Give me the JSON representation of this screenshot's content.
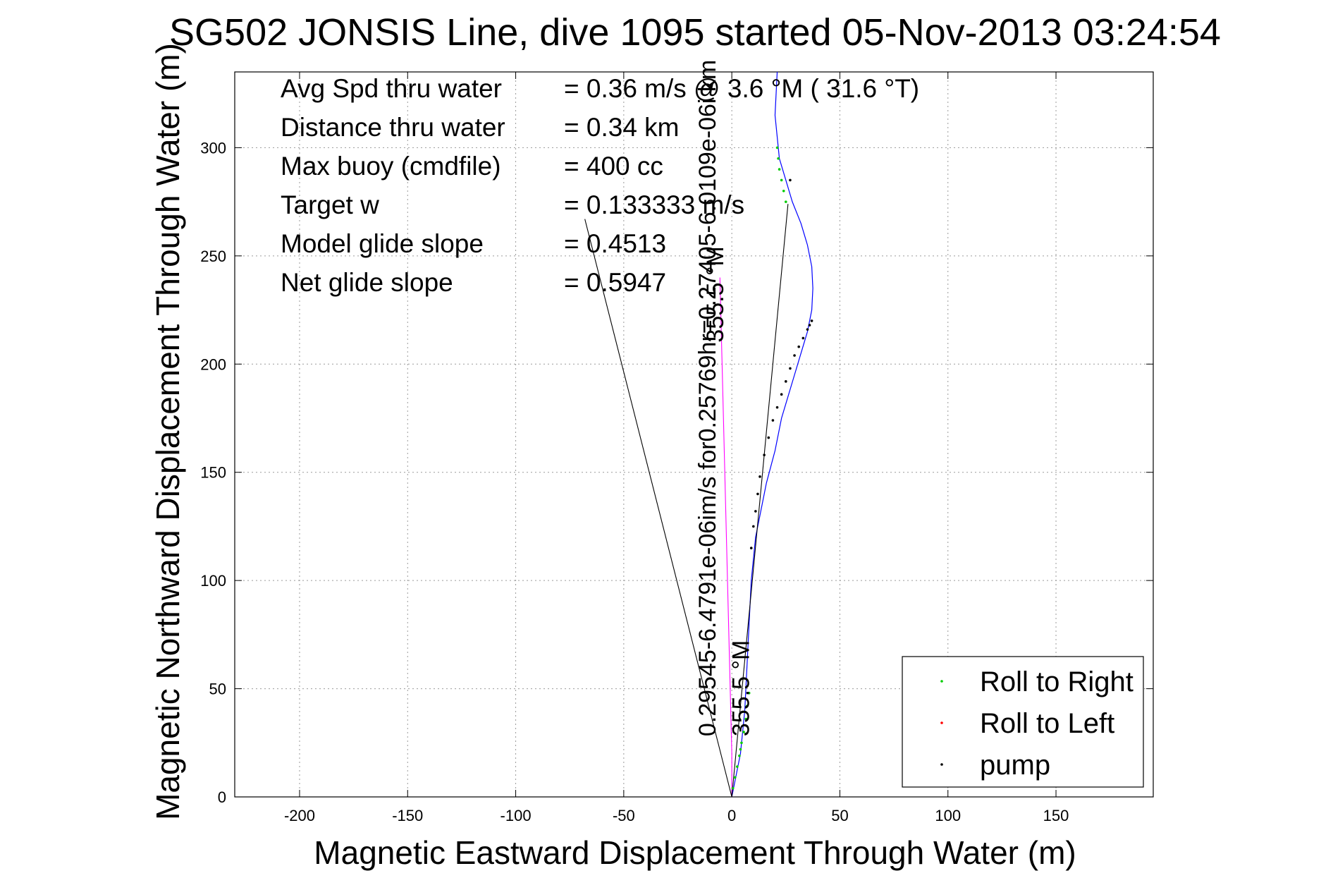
{
  "chart_data": {
    "type": "line",
    "title": "SG502 JONSIS Line, dive 1095 started 05-Nov-2013 03:24:54",
    "xlabel": "Magnetic Eastward Displacement Through Water (m)",
    "ylabel": "Magnetic Northward Displacement Through Water (m)",
    "xlim": [
      -230,
      195
    ],
    "ylim": [
      0,
      335
    ],
    "xticks": [
      -200,
      -150,
      -100,
      -50,
      0,
      50,
      100,
      150
    ],
    "yticks": [
      0,
      50,
      100,
      150,
      200,
      250,
      300
    ],
    "grid": true,
    "legend_position": "bottom-right",
    "stats": [
      {
        "label": "Avg Spd thru water",
        "value": "=  0.36 m/s @   3.6 °M ( 31.6 °T)"
      },
      {
        "label": "Distance thru water",
        "value": "=  0.34 km"
      },
      {
        "label": "Max buoy (cmdfile)",
        "value": "= 400 cc"
      },
      {
        "label": "Target w",
        "value": "= 0.133333 m/s"
      },
      {
        "label": "Model glide slope",
        "value": "= 0.4513"
      },
      {
        "label": "Net glide slope",
        "value": "= 0.5947"
      }
    ],
    "series": [
      {
        "name": "",
        "color": "#0000ff",
        "x": [
          0,
          2,
          4,
          5,
          6,
          6.5,
          7,
          7.5,
          8,
          8.5,
          9,
          10,
          11,
          13,
          16,
          20,
          23,
          26,
          29,
          32,
          35,
          37,
          37.5,
          37,
          35,
          32,
          28,
          25,
          22,
          21,
          20,
          20.5,
          21
        ],
        "y": [
          0,
          10,
          20,
          30,
          40,
          50,
          60,
          70,
          80,
          90,
          100,
          110,
          120,
          130,
          145,
          160,
          175,
          185,
          195,
          205,
          215,
          225,
          235,
          245,
          255,
          265,
          275,
          285,
          295,
          305,
          315,
          325,
          335
        ]
      },
      {
        "name": "",
        "color": "#ff00ff",
        "x": [
          0,
          0,
          -0.5,
          -1,
          -1.5,
          -2,
          -2.5,
          -3,
          -3.5,
          -4,
          -4.5,
          -5,
          -5.5
        ],
        "y": [
          0,
          20,
          40,
          60,
          80,
          100,
          120,
          140,
          160,
          180,
          200,
          220,
          240
        ]
      },
      {
        "name": "",
        "color": "#000000",
        "x": [
          0,
          -68
        ],
        "y": [
          0,
          267
        ]
      },
      {
        "name": "",
        "color": "#000000",
        "x": [
          0,
          26
        ],
        "y": [
          0,
          274
        ]
      },
      {
        "name": "Roll to Right",
        "color": "#00cc00",
        "x": [
          0.5,
          1.5,
          2.5,
          3.5,
          4,
          4.5,
          5.5,
          6.5,
          7,
          8,
          21,
          21.5,
          22,
          23,
          24,
          25
        ],
        "y": [
          4,
          9,
          14,
          19,
          22,
          25,
          30,
          36,
          42,
          48,
          300,
          295,
          290,
          285,
          280,
          275
        ]
      },
      {
        "name": "Roll to Left",
        "color": "#ff0000",
        "x": [],
        "y": []
      },
      {
        "name": "pump",
        "color": "#000000",
        "x": [
          9,
          10,
          11,
          12,
          13,
          15,
          17,
          19,
          21,
          23,
          25,
          27,
          29,
          31,
          33,
          35,
          36,
          37,
          27
        ],
        "y": [
          115,
          125,
          132,
          140,
          148,
          158,
          166,
          174,
          180,
          186,
          192,
          198,
          204,
          208,
          212,
          216,
          218,
          220,
          285
        ]
      }
    ],
    "annotations": [
      {
        "text": "0.29545-6.4791e-06im/s for0.25769hr=0.27405-6.0109e-06i km",
        "x": -7.5,
        "y": 28,
        "rotation": -90
      },
      {
        "text": "355.5 °M",
        "x": 8,
        "y": 28,
        "rotation": -90
      },
      {
        "text": "355.5 °M",
        "x": -4,
        "y": 210,
        "rotation": -90
      }
    ]
  }
}
